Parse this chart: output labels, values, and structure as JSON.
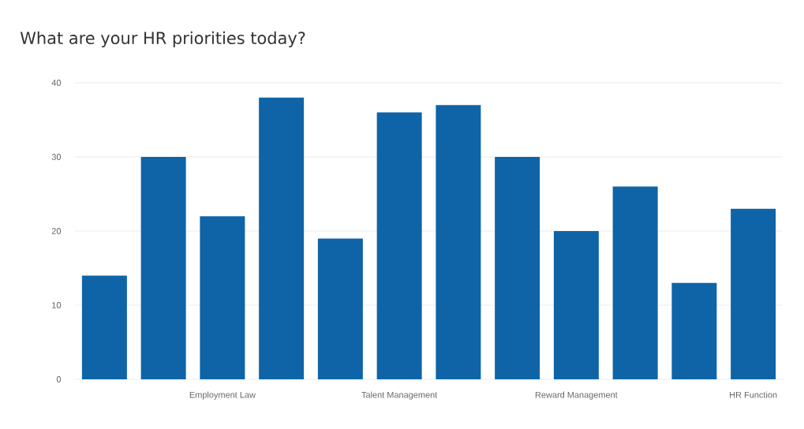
{
  "chart_data": {
    "type": "bar",
    "title": "What are your HR priorities today?",
    "categories": [
      null,
      null,
      "Employment Law",
      null,
      null,
      "Talent Management",
      null,
      null,
      "Reward Management",
      null,
      null,
      "HR Function"
    ],
    "values": [
      14,
      30,
      22,
      38,
      19,
      36,
      37,
      30,
      20,
      26,
      13,
      23
    ],
    "color": "#0e64a7",
    "ylim": [
      0,
      40
    ],
    "yticks": [
      0,
      10,
      20,
      30,
      40
    ],
    "grid": "y"
  }
}
